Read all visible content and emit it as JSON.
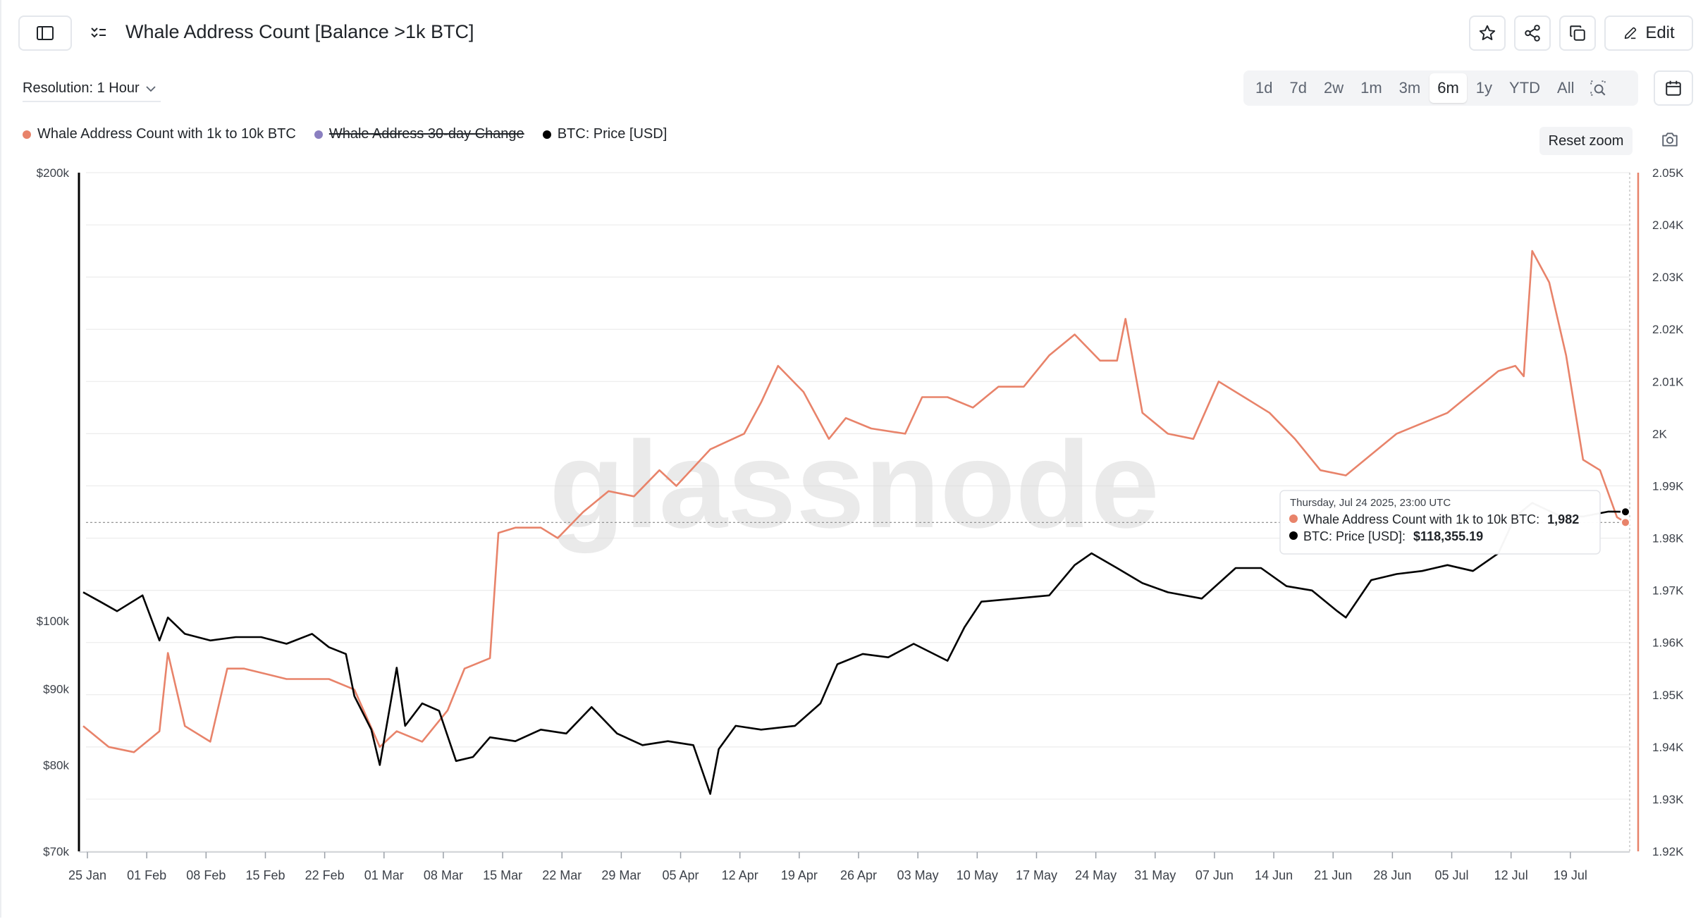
{
  "header": {
    "title": "Whale Address Count [Balance >1k BTC]",
    "edit_label": "Edit"
  },
  "resolution": {
    "label": "Resolution: 1 Hour"
  },
  "ranges": [
    "1d",
    "7d",
    "2w",
    "1m",
    "3m",
    "6m",
    "1y",
    "YTD",
    "All"
  ],
  "active_range": "6m",
  "reset_zoom_label": "Reset zoom",
  "watermark": "glassnode",
  "colors": {
    "whale": "#e8836a",
    "change": "#8a7fc0",
    "price": "#000000",
    "grid": "#ececec"
  },
  "icons": {
    "sidebar": "sidebar-toggle-icon",
    "filter": "filter-list-icon",
    "star": "star-icon",
    "share": "share-icon",
    "copy": "copy-icon",
    "edit": "pencil-icon",
    "calendar": "calendar-icon",
    "zoom": "zoom-search-icon",
    "camera": "camera-icon",
    "chevron": "chevron-down-icon"
  },
  "tooltip": {
    "date": "Thursday, Jul 24 2025, 23:00 UTC",
    "whale_label": "Whale Address Count with 1k to 10k BTC:",
    "whale_value": "1,982",
    "price_label": "BTC: Price [USD]:",
    "price_value": "$118,355.19"
  },
  "chart_data": {
    "type": "line",
    "legend": [
      {
        "name": "Whale Address Count with 1k to 10k BTC",
        "color": "#e8836a",
        "hidden": false
      },
      {
        "name": "Whale Address 30-day Change",
        "color": "#8a7fc0",
        "hidden": true
      },
      {
        "name": "BTC: Price [USD]",
        "color": "#000000",
        "hidden": false
      }
    ],
    "x_ticks": [
      "25 Jan",
      "01 Feb",
      "08 Feb",
      "15 Feb",
      "22 Feb",
      "01 Mar",
      "08 Mar",
      "15 Mar",
      "22 Mar",
      "29 Mar",
      "05 Apr",
      "12 Apr",
      "19 Apr",
      "26 Apr",
      "03 May",
      "10 May",
      "17 May",
      "24 May",
      "31 May",
      "07 Jun",
      "14 Jun",
      "21 Jun",
      "28 Jun",
      "05 Jul",
      "12 Jul",
      "19 Jul"
    ],
    "x_range": [
      "2025-01-24",
      "2025-07-25"
    ],
    "y_left": {
      "scale": "log",
      "range": [
        70000,
        200000
      ],
      "ticks": [
        "$200k",
        "$100k",
        "$90k",
        "$80k",
        "$70k"
      ],
      "tick_values": [
        200000,
        100000,
        90000,
        80000,
        70000
      ]
    },
    "y_right": {
      "scale": "linear",
      "range": [
        1920,
        2050
      ],
      "ticks": [
        "2.05K",
        "2.04K",
        "2.03K",
        "2.02K",
        "2.01K",
        "2K",
        "1.99K",
        "1.98K",
        "1.97K",
        "1.96K",
        "1.95K",
        "1.94K",
        "1.93K",
        "1.92K"
      ],
      "tick_values": [
        2050,
        2040,
        2030,
        2020,
        2010,
        2000,
        1990,
        1980,
        1970,
        1960,
        1950,
        1940,
        1930,
        1920
      ]
    },
    "series": [
      {
        "name": "Whale Address Count with 1k to 10k BTC",
        "axis": "right",
        "x": [
          "2025-01-24",
          "2025-01-27",
          "2025-01-30",
          "2025-02-02",
          "2025-02-03",
          "2025-02-05",
          "2025-02-08",
          "2025-02-10",
          "2025-02-12",
          "2025-02-17",
          "2025-02-22",
          "2025-02-25",
          "2025-02-28",
          "2025-03-02",
          "2025-03-05",
          "2025-03-08",
          "2025-03-10",
          "2025-03-13",
          "2025-03-14",
          "2025-03-16",
          "2025-03-19",
          "2025-03-21",
          "2025-03-24",
          "2025-03-27",
          "2025-03-30",
          "2025-04-02",
          "2025-04-04",
          "2025-04-08",
          "2025-04-12",
          "2025-04-14",
          "2025-04-16",
          "2025-04-19",
          "2025-04-22",
          "2025-04-24",
          "2025-04-27",
          "2025-05-01",
          "2025-05-03",
          "2025-05-06",
          "2025-05-09",
          "2025-05-12",
          "2025-05-15",
          "2025-05-18",
          "2025-05-21",
          "2025-05-24",
          "2025-05-26",
          "2025-05-27",
          "2025-05-29",
          "2025-06-01",
          "2025-06-04",
          "2025-06-07",
          "2025-06-10",
          "2025-06-13",
          "2025-06-16",
          "2025-06-19",
          "2025-06-22",
          "2025-06-25",
          "2025-06-28",
          "2025-07-01",
          "2025-07-04",
          "2025-07-07",
          "2025-07-10",
          "2025-07-12",
          "2025-07-13",
          "2025-07-14",
          "2025-07-16",
          "2025-07-18",
          "2025-07-20",
          "2025-07-22",
          "2025-07-24",
          "2025-07-25"
        ],
        "values": [
          1944,
          1940,
          1939,
          1943,
          1958,
          1944,
          1941,
          1955,
          1955,
          1953,
          1953,
          1951,
          1940,
          1943,
          1941,
          1947,
          1955,
          1957,
          1981,
          1982,
          1982,
          1980,
          1985,
          1989,
          1988,
          1993,
          1990,
          1997,
          2000,
          2006,
          2013,
          2008,
          1999,
          2003,
          2001,
          2000,
          2007,
          2007,
          2005,
          2009,
          2009,
          2015,
          2019,
          2014,
          2014,
          2022,
          2004,
          2000,
          1999,
          2010,
          2007,
          2004,
          1999,
          1993,
          1992,
          1996,
          2000,
          2002,
          2004,
          2008,
          2012,
          2013,
          2011,
          2035,
          2029,
          2015,
          1995,
          1993,
          1984,
          1983
        ]
      },
      {
        "name": "BTC: Price [USD]",
        "axis": "left",
        "x": [
          "2025-01-24",
          "2025-01-26",
          "2025-01-28",
          "2025-01-31",
          "2025-02-02",
          "2025-02-03",
          "2025-02-05",
          "2025-02-08",
          "2025-02-11",
          "2025-02-14",
          "2025-02-17",
          "2025-02-20",
          "2025-02-22",
          "2025-02-24",
          "2025-02-25",
          "2025-02-27",
          "2025-02-28",
          "2025-03-02",
          "2025-03-03",
          "2025-03-05",
          "2025-03-07",
          "2025-03-09",
          "2025-03-11",
          "2025-03-13",
          "2025-03-16",
          "2025-03-19",
          "2025-03-22",
          "2025-03-25",
          "2025-03-28",
          "2025-03-31",
          "2025-04-03",
          "2025-04-06",
          "2025-04-08",
          "2025-04-09",
          "2025-04-11",
          "2025-04-14",
          "2025-04-18",
          "2025-04-21",
          "2025-04-23",
          "2025-04-26",
          "2025-04-29",
          "2025-05-02",
          "2025-05-06",
          "2025-05-08",
          "2025-05-10",
          "2025-05-14",
          "2025-05-18",
          "2025-05-21",
          "2025-05-23",
          "2025-05-26",
          "2025-05-29",
          "2025-06-01",
          "2025-06-05",
          "2025-06-09",
          "2025-06-12",
          "2025-06-15",
          "2025-06-18",
          "2025-06-21",
          "2025-06-22",
          "2025-06-25",
          "2025-06-28",
          "2025-07-01",
          "2025-07-04",
          "2025-07-07",
          "2025-07-10",
          "2025-07-12",
          "2025-07-14",
          "2025-07-17",
          "2025-07-20",
          "2025-07-23",
          "2025-07-25"
        ],
        "values": [
          104500,
          103000,
          101500,
          104000,
          97000,
          100500,
          98000,
          97000,
          97500,
          97500,
          96500,
          98000,
          96000,
          95000,
          89000,
          84500,
          80000,
          93000,
          85000,
          88000,
          87000,
          80500,
          81000,
          83500,
          83000,
          84500,
          84000,
          87500,
          84000,
          82500,
          83000,
          82500,
          76500,
          82000,
          85000,
          84500,
          85000,
          88000,
          93500,
          95000,
          94500,
          96500,
          94000,
          99000,
          103000,
          103500,
          104000,
          109000,
          111000,
          108500,
          106000,
          104500,
          103500,
          108500,
          108500,
          105500,
          104800,
          101500,
          100500,
          106500,
          107500,
          108000,
          109000,
          108000,
          111000,
          117500,
          120000,
          117800,
          117500,
          118400,
          118355
        ]
      }
    ]
  }
}
